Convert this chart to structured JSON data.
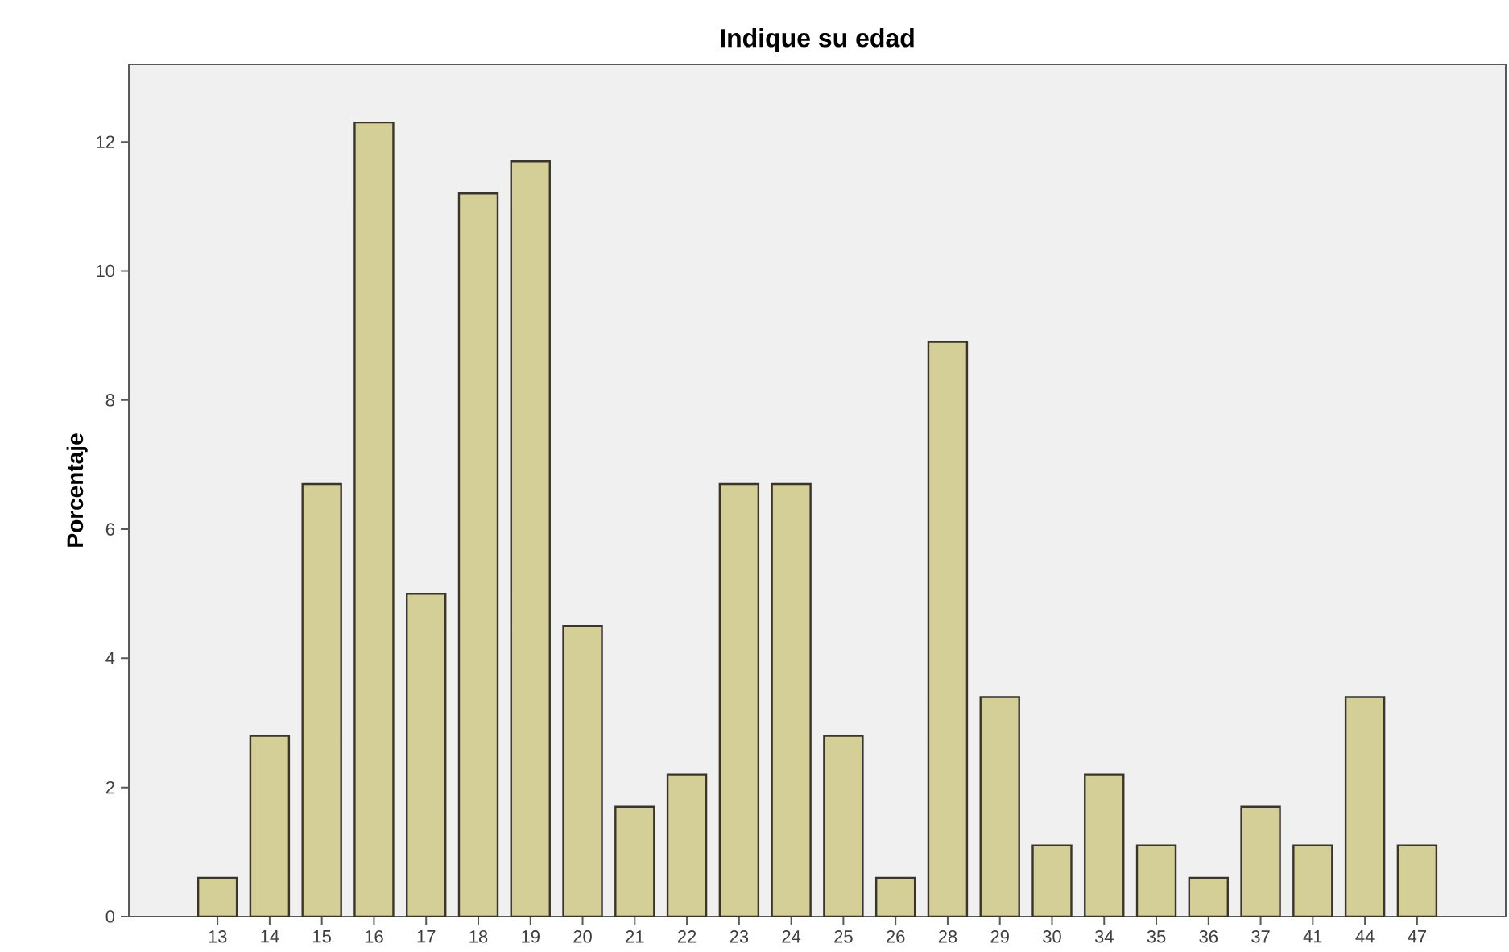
{
  "chart_data": {
    "type": "bar",
    "title": "Indique su edad",
    "ylabel": "Porcentaje",
    "categories": [
      "13",
      "14",
      "15",
      "16",
      "17",
      "18",
      "19",
      "20",
      "21",
      "22",
      "23",
      "24",
      "25",
      "26",
      "28",
      "29",
      "30",
      "34",
      "35",
      "36",
      "37",
      "41",
      "44",
      "47"
    ],
    "values": [
      0.6,
      2.8,
      6.7,
      12.3,
      5.0,
      11.2,
      11.7,
      4.5,
      1.7,
      2.2,
      6.7,
      6.7,
      2.8,
      0.6,
      8.9,
      3.4,
      1.1,
      2.2,
      1.1,
      0.6,
      1.7,
      1.1,
      3.4,
      1.1
    ],
    "color": "#d3cf97",
    "ylim": [
      0,
      13.2
    ],
    "yticks": [
      0,
      2,
      4,
      6,
      8,
      10,
      12
    ]
  }
}
